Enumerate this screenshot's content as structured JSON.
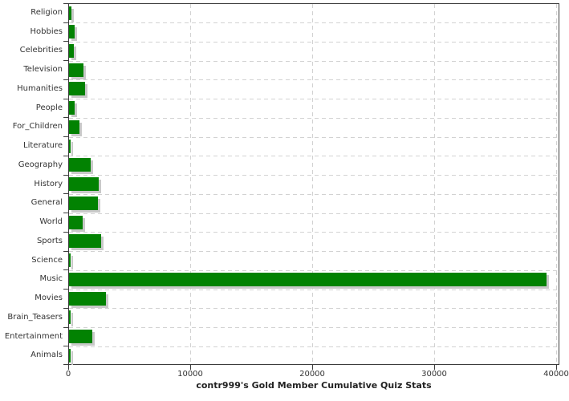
{
  "chart_data": {
    "type": "bar",
    "orientation": "horizontal",
    "title": "contr999's Gold Member Cumulative Quiz Stats",
    "categories": [
      "Religion",
      "Hobbies",
      "Celebrities",
      "Television",
      "Humanities",
      "People",
      "For_Children",
      "Literature",
      "Geography",
      "History",
      "General",
      "World",
      "Sports",
      "Science",
      "Music",
      "Movies",
      "Brain_Teasers",
      "Entertainment",
      "Animals"
    ],
    "values": [
      180,
      480,
      380,
      1200,
      1320,
      460,
      870,
      130,
      1760,
      2420,
      2390,
      1100,
      2610,
      90,
      39150,
      3050,
      90,
      1890,
      80
    ],
    "xlabel": "",
    "ylabel": "",
    "xlim": [
      0,
      40000
    ],
    "x_ticks": [
      0,
      10000,
      20000,
      30000,
      40000
    ],
    "x_tick_labels": [
      "0",
      "10000",
      "20000",
      "30000",
      "40000"
    ],
    "grid": true,
    "legend": "none",
    "colors": {
      "bar": "#028202",
      "bar_shadow": "#c9c9c9",
      "gridline": "#d2d2d2",
      "axis": "#3c3c3c",
      "text": "#333333"
    }
  }
}
